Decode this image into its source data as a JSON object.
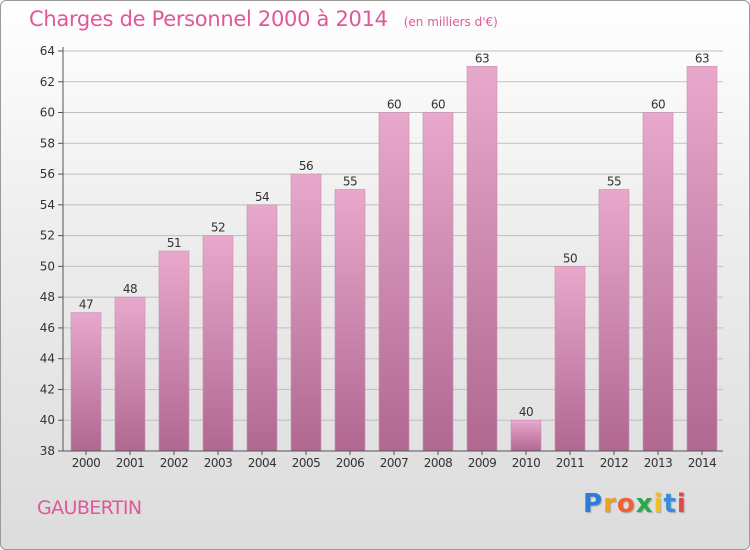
{
  "title": "Charges de Personnel 2000 à 2014",
  "subtitle": "(en milliers d'€)",
  "commune": "GAUBERTIN",
  "logo": {
    "letters": [
      "P",
      "r",
      "o",
      "x",
      "i",
      "t",
      "i"
    ],
    "colors": [
      "#2b7bd8",
      "#f0a020",
      "#f06030",
      "#2aa84a",
      "#f0c020",
      "#3a8ad8",
      "#e04848"
    ]
  },
  "colors": {
    "bar_top": "#e8a8cc",
    "bar_bottom": "#b06890",
    "accent": "#e0589a",
    "axis": "#555555",
    "grid": "#bfbfbf"
  },
  "chart_data": {
    "type": "bar",
    "categories": [
      "2000",
      "2001",
      "2002",
      "2003",
      "2004",
      "2005",
      "2006",
      "2007",
      "2008",
      "2009",
      "2010",
      "2011",
      "2012",
      "2013",
      "2014"
    ],
    "values": [
      47,
      48,
      51,
      52,
      54,
      56,
      55,
      60,
      60,
      63,
      40,
      50,
      55,
      60,
      63
    ],
    "ylim": [
      38,
      64
    ],
    "yticks": [
      38,
      40,
      42,
      44,
      46,
      48,
      50,
      52,
      54,
      56,
      58,
      60,
      62,
      64
    ],
    "grid": true,
    "xlabel": "",
    "ylabel": ""
  }
}
